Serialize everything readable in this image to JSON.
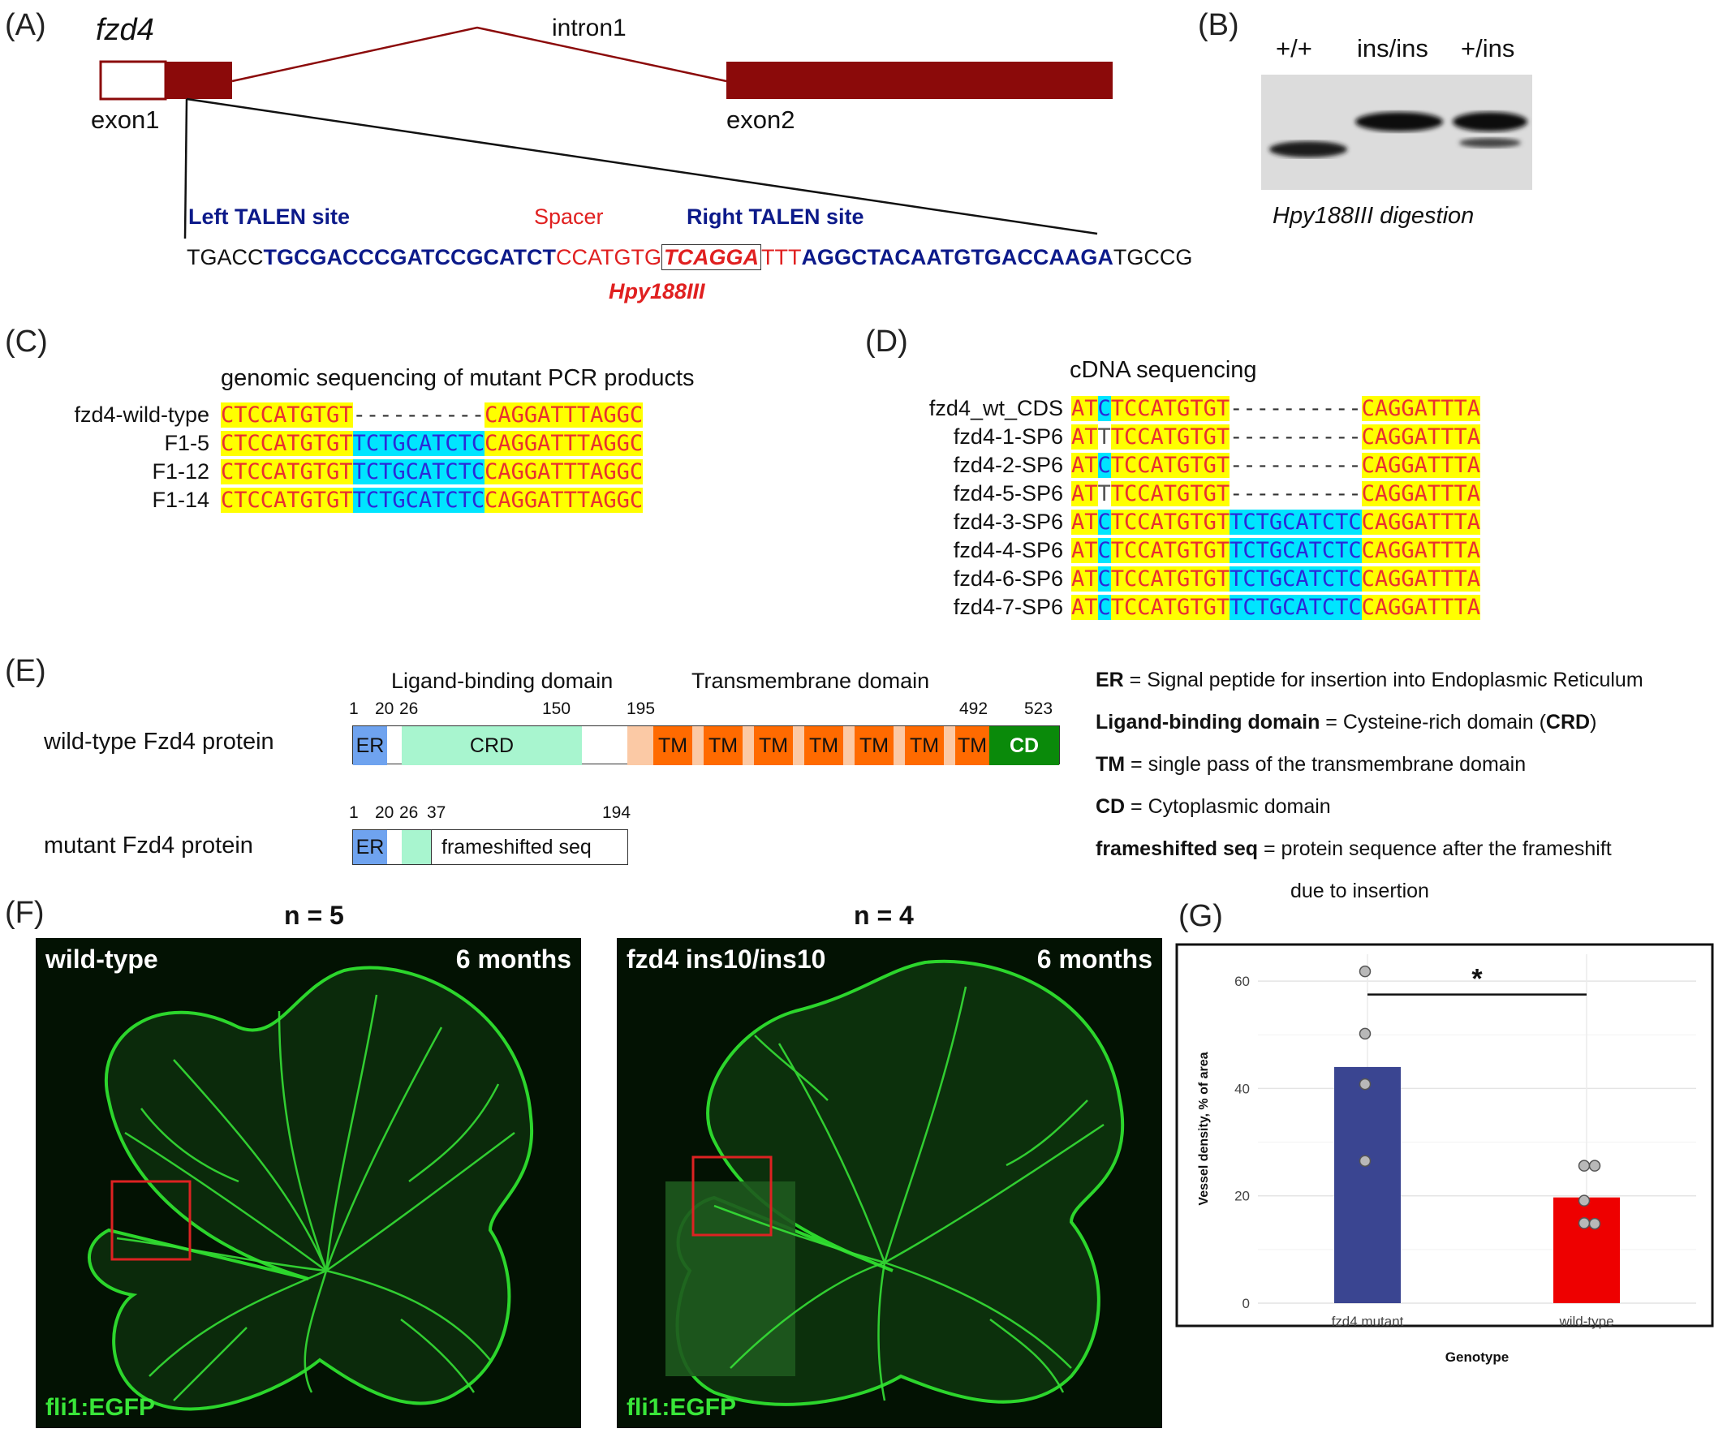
{
  "panelA": {
    "label": "(A)",
    "gene": "fzd4",
    "intron": "intron1",
    "exon1": "exon1",
    "exon2": "exon2",
    "left_site": "Left TALEN site",
    "spacer": "Spacer",
    "right_site": "Right TALEN site",
    "seq_pre": "TGACC",
    "seq_left": "TGCGACCCGATCCGCATCT",
    "seq_spacer1": "CCATGTG",
    "seq_box": "TCAGGA",
    "seq_spacer2": "TTT",
    "seq_right": "AGGCTACAATGTGACCAAGA",
    "seq_post": "TGCCG",
    "enzyme": "Hpy188III"
  },
  "panelB": {
    "label": "(B)",
    "lanes": [
      "+/+",
      "ins/ins",
      "+/ins"
    ],
    "caption": "Hpy188III digestion"
  },
  "panelC": {
    "label": "(C)",
    "title": "genomic sequencing of mutant PCR products",
    "rows": [
      {
        "name": "fzd4-wild-type",
        "left": "CTCCATGTGT",
        "mid": "----------",
        "right": "CAGGATTTAGGC",
        "ins": false
      },
      {
        "name": "F1-5",
        "left": "CTCCATGTGT",
        "mid": "TCTGCATCTC",
        "right": "CAGGATTTAGGC",
        "ins": true
      },
      {
        "name": "F1-12",
        "left": "CTCCATGTGT",
        "mid": "TCTGCATCTC",
        "right": "CAGGATTTAGGC",
        "ins": true
      },
      {
        "name": "F1-14",
        "left": "CTCCATGTGT",
        "mid": "TCTGCATCTC",
        "right": "CAGGATTTAGGC",
        "ins": true
      }
    ]
  },
  "panelD": {
    "label": "(D)",
    "title": "cDNA sequencing",
    "rows": [
      {
        "name": "fzd4_wt_CDS",
        "a": "AT",
        "snp": "C",
        "left": "TCCATGTGT",
        "mid": "----------",
        "right": "CAGGATTTA",
        "ins": false,
        "snpHi": true
      },
      {
        "name": "fzd4-1-SP6",
        "a": "AT",
        "snp": "T",
        "left": "TCCATGTGT",
        "mid": "----------",
        "right": "CAGGATTTA",
        "ins": false,
        "snpHi": false
      },
      {
        "name": "fzd4-2-SP6",
        "a": "AT",
        "snp": "C",
        "left": "TCCATGTGT",
        "mid": "----------",
        "right": "CAGGATTTA",
        "ins": false,
        "snpHi": true
      },
      {
        "name": "fzd4-5-SP6",
        "a": "AT",
        "snp": "T",
        "left": "TCCATGTGT",
        "mid": "----------",
        "right": "CAGGATTTA",
        "ins": false,
        "snpHi": false
      },
      {
        "name": "fzd4-3-SP6",
        "a": "AT",
        "snp": "C",
        "left": "TCCATGTGT",
        "mid": "TCTGCATCTC",
        "right": "CAGGATTTA",
        "ins": true,
        "snpHi": true
      },
      {
        "name": "fzd4-4-SP6",
        "a": "AT",
        "snp": "C",
        "left": "TCCATGTGT",
        "mid": "TCTGCATCTC",
        "right": "CAGGATTTA",
        "ins": true,
        "snpHi": true
      },
      {
        "name": "fzd4-6-SP6",
        "a": "AT",
        "snp": "C",
        "left": "TCCATGTGT",
        "mid": "TCTGCATCTC",
        "right": "CAGGATTTA",
        "ins": true,
        "snpHi": true
      },
      {
        "name": "fzd4-7-SP6",
        "a": "AT",
        "snp": "C",
        "left": "TCCATGTGT",
        "mid": "TCTGCATCTC",
        "right": "CAGGATTTA",
        "ins": true,
        "snpHi": true
      }
    ]
  },
  "panelE": {
    "label": "(E)",
    "ligand_domain": "Ligand-binding domain",
    "tm_domain": "Transmembrane domain",
    "wt_label": "wild-type Fzd4 protein",
    "mut_label": "mutant Fzd4 protein",
    "wt_positions": [
      "1",
      "20",
      "26",
      "150",
      "195",
      "492",
      "523"
    ],
    "mut_positions": [
      "1",
      "20",
      "26",
      "37",
      "194"
    ],
    "er": "ER",
    "crd": "CRD",
    "tm": [
      "TM",
      "TM",
      "TM",
      "TM",
      "TM",
      "TM",
      "TM"
    ],
    "cd": "CD",
    "frameshift": "frameshifted seq",
    "legend": [
      {
        "term": "ER",
        "desc": " = Signal peptide for insertion into Endoplasmic Reticulum"
      },
      {
        "term": "Ligand-binding domain",
        "desc": " = Cysteine-rich domain (",
        "term2": "CRD",
        "desc2": ")"
      },
      {
        "term": "TM",
        "desc": " = single pass of the transmembrane domain"
      },
      {
        "term": "CD",
        "desc": " = Cytoplasmic domain"
      },
      {
        "term": "frameshifted seq",
        "desc": " = protein sequence after the frameshift"
      }
    ],
    "legend_cont": "due to insertion"
  },
  "panelF": {
    "label": "(F)",
    "left": {
      "n": "n = 5",
      "genotype": "wild-type",
      "age": "6 months",
      "marker": "fli1:EGFP"
    },
    "right": {
      "n": "n = 4",
      "genotype": "fzd4 ins10/ins10",
      "age": "6 months",
      "marker": "fli1:EGFP"
    }
  },
  "panelG": {
    "label": "(G)",
    "significance": "*",
    "chart_data": {
      "type": "bar",
      "categories": [
        "fzd4 mutant",
        "wild-type"
      ],
      "values": [
        44,
        19.7
      ],
      "points": [
        [
          61.8,
          50.2,
          40.8,
          26.5
        ],
        [
          25.6,
          25.6,
          19.1,
          14.9,
          14.8
        ]
      ],
      "xlabel": "Genotype",
      "ylabel": "Vessel density, % of area",
      "ylim": [
        0,
        65
      ],
      "yticks": [
        0,
        20,
        40,
        60
      ],
      "colors": [
        "#3a4591",
        "#ee0000"
      ],
      "grid": true
    }
  }
}
